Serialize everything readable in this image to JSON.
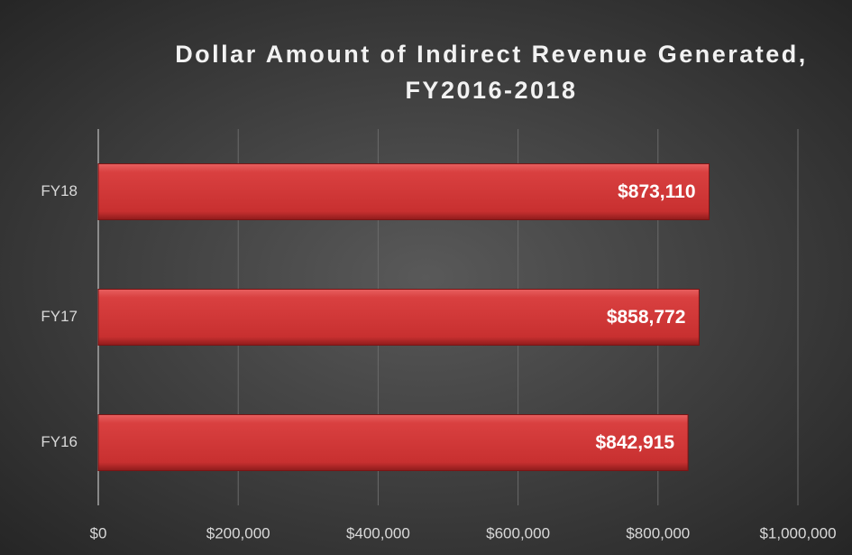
{
  "chart_data": {
    "type": "bar",
    "orientation": "horizontal",
    "title": "Dollar Amount of Indirect Revenue Generated, FY2016-2018",
    "categories": [
      "FY18",
      "FY17",
      "FY16"
    ],
    "values": [
      873110,
      858772,
      842915
    ],
    "value_labels": [
      "$873,110",
      "$858,772",
      "$842,915"
    ],
    "color": "#d63a3a",
    "xlim": [
      0,
      1000000
    ],
    "xticks": [
      {
        "value": 0,
        "label": "$0"
      },
      {
        "value": 200000,
        "label": "$200,000"
      },
      {
        "value": 400000,
        "label": "$400,000"
      },
      {
        "value": 600000,
        "label": "$600,000"
      },
      {
        "value": 800000,
        "label": "$800,000"
      },
      {
        "value": 1000000,
        "label": "$1,000,000"
      }
    ],
    "grid": true
  }
}
